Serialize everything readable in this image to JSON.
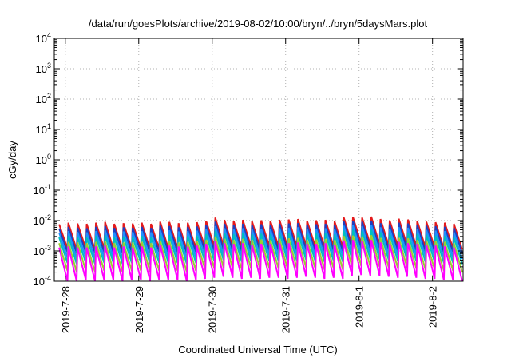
{
  "chart_data": {
    "type": "line",
    "title": "/data/run/goesPlots/archive/2019-08-02/10:00/bryn/../bryn/5daysMars.plot",
    "xlabel": "Coordinated Universal Time (UTC)",
    "ylabel": "cGy/day",
    "y_scale": "log",
    "ylim": [
      0.0001,
      10000
    ],
    "xlim": [
      "2019-07-27T20:24",
      "2019-08-02T10:00"
    ],
    "grid": true,
    "x_ticks": [
      {
        "value": "2019-07-28T00:00",
        "label": "2019-7-28"
      },
      {
        "value": "2019-07-29T00:00",
        "label": "2019-7-29"
      },
      {
        "value": "2019-07-30T00:00",
        "label": "2019-7-30"
      },
      {
        "value": "2019-07-31T00:00",
        "label": "2019-7-31"
      },
      {
        "value": "2019-08-01T00:00",
        "label": "2019-8-1"
      },
      {
        "value": "2019-08-02T00:00",
        "label": "2019-8-2"
      }
    ],
    "y_ticks": [
      {
        "value": 0.0001,
        "base": "10",
        "exp": "-4"
      },
      {
        "value": 0.001,
        "base": "10",
        "exp": "-3"
      },
      {
        "value": 0.01,
        "base": "10",
        "exp": "-2"
      },
      {
        "value": 0.1,
        "base": "10",
        "exp": "-1"
      },
      {
        "value": 1,
        "base": "10",
        "exp": "0"
      },
      {
        "value": 10,
        "base": "10",
        "exp": "1"
      },
      {
        "value": 100,
        "base": "10",
        "exp": "2"
      },
      {
        "value": 1000,
        "base": "10",
        "exp": "3"
      },
      {
        "value": 10000,
        "base": "10",
        "exp": "4"
      }
    ],
    "sawtooth_period_hours": 3,
    "cycle_peak_times": [
      "2019-07-27T22:00",
      "2019-07-28T01:00",
      "2019-07-28T04:00",
      "2019-07-28T07:00",
      "2019-07-28T10:00",
      "2019-07-28T13:00",
      "2019-07-28T16:00",
      "2019-07-28T19:00",
      "2019-07-28T22:00",
      "2019-07-29T01:00",
      "2019-07-29T04:00",
      "2019-07-29T07:00",
      "2019-07-29T10:00",
      "2019-07-29T13:00",
      "2019-07-29T16:00",
      "2019-07-29T19:00",
      "2019-07-29T22:00",
      "2019-07-30T01:00",
      "2019-07-30T04:00",
      "2019-07-30T07:00",
      "2019-07-30T10:00",
      "2019-07-30T13:00",
      "2019-07-30T16:00",
      "2019-07-30T19:00",
      "2019-07-30T22:00",
      "2019-07-31T01:00",
      "2019-07-31T04:00",
      "2019-07-31T07:00",
      "2019-07-31T10:00",
      "2019-07-31T13:00",
      "2019-07-31T16:00",
      "2019-07-31T19:00",
      "2019-07-31T22:00",
      "2019-08-01T01:00",
      "2019-08-01T04:00",
      "2019-08-01T07:00",
      "2019-08-01T10:00",
      "2019-08-01T13:00",
      "2019-08-01T16:00",
      "2019-08-01T19:00",
      "2019-08-01T22:00",
      "2019-08-02T01:00",
      "2019-08-02T04:00",
      "2019-08-02T07:00"
    ],
    "series": [
      {
        "color": "#e41a1c",
        "peaks": [
          0.0075,
          0.0085,
          0.008,
          0.0078,
          0.0085,
          0.009,
          0.0078,
          0.0082,
          0.008,
          0.0085,
          0.0078,
          0.0092,
          0.009,
          0.0082,
          0.0085,
          0.0088,
          0.0098,
          0.0125,
          0.0105,
          0.0098,
          0.0105,
          0.0095,
          0.0102,
          0.0098,
          0.0105,
          0.0108,
          0.0112,
          0.0098,
          0.0102,
          0.0105,
          0.0095,
          0.0128,
          0.0132,
          0.0125,
          0.0135,
          0.0112,
          0.0102,
          0.0115,
          0.0108,
          0.0098,
          0.0092,
          0.0088,
          0.0085,
          0.0078
        ],
        "troughs": [
          0.0012,
          0.0011,
          0.0012,
          0.0011,
          0.0012,
          0.0012,
          0.0011,
          0.0012,
          0.0012,
          0.0011,
          0.0012,
          0.0012,
          0.0012,
          0.0011,
          0.0012,
          0.0013,
          0.0014,
          0.0015,
          0.0014,
          0.0013,
          0.0014,
          0.0013,
          0.0014,
          0.0014,
          0.0013,
          0.0014,
          0.0015,
          0.0014,
          0.0013,
          0.0014,
          0.0013,
          0.0016,
          0.0017,
          0.0016,
          0.0016,
          0.0015,
          0.0014,
          0.0015,
          0.0014,
          0.0013,
          0.0013,
          0.0012,
          0.0012,
          0.0011
        ]
      },
      {
        "color": "#1f3fbf",
        "peaks": [
          0.0055,
          0.0062,
          0.0058,
          0.0056,
          0.0062,
          0.0066,
          0.0057,
          0.006,
          0.0058,
          0.0062,
          0.0057,
          0.0068,
          0.0066,
          0.006,
          0.0062,
          0.0064,
          0.0072,
          0.0092,
          0.0078,
          0.0072,
          0.0078,
          0.007,
          0.0075,
          0.0072,
          0.0078,
          0.008,
          0.0082,
          0.0072,
          0.0075,
          0.0078,
          0.007,
          0.0094,
          0.0098,
          0.0092,
          0.0099,
          0.0082,
          0.0075,
          0.0085,
          0.008,
          0.0072,
          0.0068,
          0.0065,
          0.0062,
          0.0057
        ],
        "troughs": [
          0.0009,
          0.00085,
          0.0009,
          0.00085,
          0.0009,
          0.0009,
          0.00085,
          0.0009,
          0.0009,
          0.00085,
          0.0009,
          0.0009,
          0.0009,
          0.00085,
          0.0009,
          0.00095,
          0.001,
          0.0011,
          0.001,
          0.00095,
          0.001,
          0.00095,
          0.001,
          0.001,
          0.00095,
          0.001,
          0.0011,
          0.001,
          0.00095,
          0.001,
          0.00095,
          0.0012,
          0.0012,
          0.0012,
          0.0012,
          0.0011,
          0.001,
          0.0011,
          0.001,
          0.00095,
          0.00095,
          0.0009,
          0.0009,
          0.00085
        ]
      },
      {
        "color": "#1e90ff",
        "peaks": [
          0.004,
          0.0045,
          0.0042,
          0.0041,
          0.0045,
          0.0048,
          0.0041,
          0.0044,
          0.0042,
          0.0045,
          0.0041,
          0.0049,
          0.0048,
          0.0044,
          0.0045,
          0.0047,
          0.0052,
          0.0066,
          0.0056,
          0.0052,
          0.0056,
          0.0051,
          0.0054,
          0.0052,
          0.0056,
          0.0058,
          0.006,
          0.0052,
          0.0054,
          0.0056,
          0.0051,
          0.0068,
          0.007,
          0.0066,
          0.0072,
          0.006,
          0.0054,
          0.0061,
          0.0058,
          0.0052,
          0.0049,
          0.0047,
          0.0045,
          0.0041
        ],
        "troughs": [
          0.0006,
          0.00055,
          0.0006,
          0.00055,
          0.0006,
          0.0006,
          0.00055,
          0.0006,
          0.0006,
          0.00055,
          0.0006,
          0.0006,
          0.0006,
          0.00055,
          0.0006,
          0.00065,
          0.0007,
          0.00075,
          0.0007,
          0.00065,
          0.0007,
          0.00065,
          0.0007,
          0.0007,
          0.00065,
          0.0007,
          0.00075,
          0.0007,
          0.00065,
          0.0007,
          0.00065,
          0.0008,
          0.00085,
          0.0008,
          0.0008,
          0.00075,
          0.0007,
          0.00075,
          0.0007,
          0.00065,
          0.00065,
          0.0006,
          0.0006,
          0.00055
        ]
      },
      {
        "color": "#00bfbf",
        "peaks": [
          0.0028,
          0.0031,
          0.0029,
          0.0028,
          0.0031,
          0.0033,
          0.0028,
          0.003,
          0.0029,
          0.0031,
          0.0028,
          0.0034,
          0.0033,
          0.003,
          0.0031,
          0.0032,
          0.0036,
          0.0046,
          0.0039,
          0.0036,
          0.0039,
          0.0035,
          0.0037,
          0.0036,
          0.0039,
          0.004,
          0.0041,
          0.0036,
          0.0037,
          0.0039,
          0.0035,
          0.0047,
          0.0049,
          0.0046,
          0.005,
          0.0041,
          0.0037,
          0.0042,
          0.004,
          0.0036,
          0.0034,
          0.0032,
          0.0031,
          0.0028
        ],
        "troughs": [
          0.0004,
          0.00037,
          0.0004,
          0.00037,
          0.0004,
          0.0004,
          0.00037,
          0.0004,
          0.0004,
          0.00037,
          0.0004,
          0.0004,
          0.0004,
          0.00037,
          0.0004,
          0.00043,
          0.00046,
          0.0005,
          0.00046,
          0.00043,
          0.00046,
          0.00043,
          0.00046,
          0.00046,
          0.00043,
          0.00046,
          0.0005,
          0.00046,
          0.00043,
          0.00046,
          0.00043,
          0.00053,
          0.00056,
          0.00053,
          0.00053,
          0.0005,
          0.00046,
          0.0005,
          0.00046,
          0.00043,
          0.00043,
          0.0004,
          0.0004,
          0.00037
        ]
      },
      {
        "color": "#9acd32",
        "peaks": [
          0.0018,
          0.002,
          0.0019,
          0.0018,
          0.002,
          0.0021,
          0.0018,
          0.0019,
          0.0019,
          0.002,
          0.0018,
          0.0022,
          0.0021,
          0.0019,
          0.002,
          0.0021,
          0.0023,
          0.003,
          0.0025,
          0.0023,
          0.0025,
          0.0023,
          0.0024,
          0.0023,
          0.0025,
          0.0026,
          0.0027,
          0.0023,
          0.0024,
          0.0025,
          0.0023,
          0.0031,
          0.0032,
          0.003,
          0.0033,
          0.0027,
          0.0024,
          0.0027,
          0.0026,
          0.0023,
          0.0022,
          0.0021,
          0.002,
          0.0018
        ],
        "troughs": [
          0.00022,
          0.0002,
          0.00022,
          0.0002,
          0.00022,
          0.00022,
          0.0002,
          0.00022,
          0.00022,
          0.0002,
          0.00022,
          0.00022,
          0.00022,
          0.0002,
          0.00022,
          0.00024,
          0.00026,
          0.00028,
          0.00026,
          0.00024,
          0.00026,
          0.00024,
          0.00026,
          0.00026,
          0.00024,
          0.00026,
          0.00028,
          0.00026,
          0.00024,
          0.00026,
          0.00024,
          0.0003,
          0.00032,
          0.0003,
          0.0003,
          0.00028,
          0.00026,
          0.00028,
          0.00026,
          0.00024,
          0.00024,
          0.00022,
          0.00022,
          0.0002
        ]
      },
      {
        "color": "#ff00ff",
        "peaks": [
          0.0013,
          0.0014,
          0.0013,
          0.0013,
          0.0014,
          0.0015,
          0.0013,
          0.0014,
          0.0013,
          0.0014,
          0.0013,
          0.0016,
          0.0015,
          0.0014,
          0.0014,
          0.0015,
          0.0017,
          0.0021,
          0.0018,
          0.0017,
          0.0018,
          0.0016,
          0.0017,
          0.0017,
          0.0018,
          0.0018,
          0.0019,
          0.0017,
          0.0017,
          0.0018,
          0.0016,
          0.0022,
          0.0023,
          0.0021,
          0.0023,
          0.0019,
          0.0017,
          0.002,
          0.0018,
          0.0017,
          0.0016,
          0.0015,
          0.0014,
          0.0013
        ],
        "troughs": [
          0.0001,
          0.0001,
          0.00011,
          0.0001,
          0.00011,
          0.00011,
          0.0001,
          0.00011,
          0.00011,
          0.0001,
          0.00011,
          0.00011,
          0.00011,
          0.0001,
          0.00011,
          0.00012,
          0.00013,
          0.00014,
          0.00013,
          0.00012,
          0.00013,
          0.00012,
          0.00013,
          0.00013,
          0.00012,
          0.00013,
          0.00014,
          0.00013,
          0.00012,
          0.00013,
          0.00012,
          0.00015,
          0.00016,
          0.00015,
          0.00015,
          0.00014,
          0.00013,
          0.00014,
          0.00013,
          0.00012,
          0.00012,
          0.00011,
          0.00011,
          0.0001
        ]
      }
    ]
  }
}
